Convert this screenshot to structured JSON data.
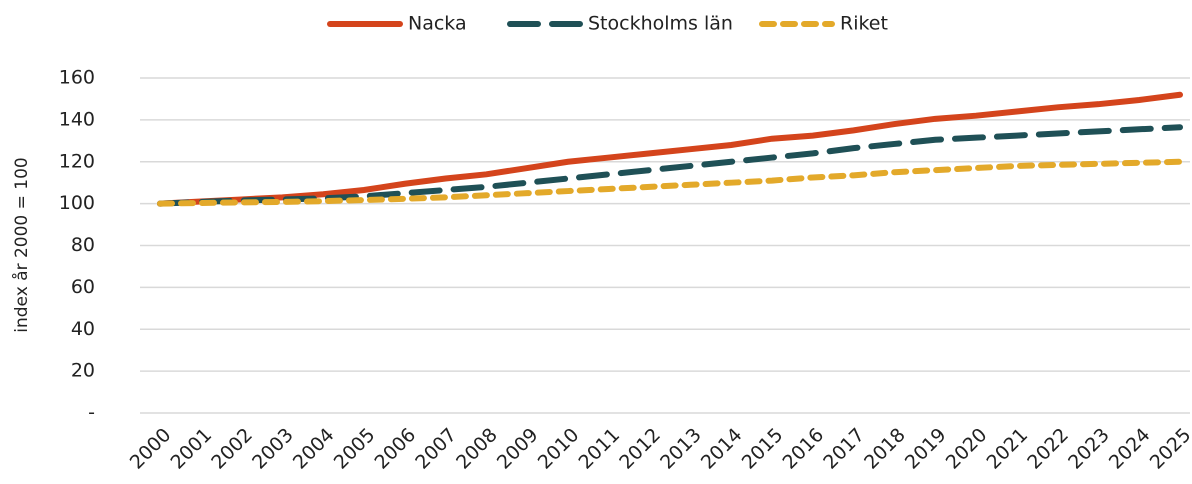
{
  "chart_data": {
    "type": "line",
    "y_label": "index år 2000 = 100",
    "categories": [
      "2000",
      "2001",
      "2002",
      "2003",
      "2004",
      "2005",
      "2006",
      "2007",
      "2008",
      "2009",
      "2010",
      "2011",
      "2012",
      "2013",
      "2014",
      "2015",
      "2016",
      "2017",
      "2018",
      "2019",
      "2020",
      "2021",
      "2022",
      "2023",
      "2024",
      "2025"
    ],
    "series": [
      {
        "name": "Nacka",
        "color": "#d4441c",
        "linestyle": "solid",
        "values": [
          100,
          101,
          102,
          103,
          104.5,
          106.5,
          109.5,
          112,
          114,
          117,
          120,
          122,
          124,
          126,
          128,
          131,
          132.5,
          135,
          138,
          140.5,
          142,
          144,
          146,
          147.5,
          149.5,
          152
        ]
      },
      {
        "name": "Stockholms län",
        "color": "#1f5056",
        "linestyle": "long-dash",
        "values": [
          100,
          100.8,
          101.5,
          102,
          102.5,
          103.5,
          105,
          106.5,
          108,
          110,
          112,
          114,
          116,
          118,
          120,
          122,
          124,
          126.5,
          128.5,
          130.5,
          131.5,
          132.5,
          133.5,
          134.5,
          135.5,
          136.5
        ]
      },
      {
        "name": "Riket",
        "color": "#e3a92a",
        "linestyle": "short-dash",
        "values": [
          100,
          100.3,
          100.6,
          100.8,
          101.2,
          101.7,
          102.3,
          103,
          104,
          105,
          106,
          107,
          108,
          109,
          110,
          111,
          112.5,
          113.5,
          115,
          116,
          117,
          118,
          118.5,
          119,
          119.5,
          120
        ]
      }
    ],
    "ylim": [
      0,
      160
    ],
    "yticks": [
      {
        "value": 0,
        "label": "-"
      },
      20,
      40,
      60,
      80,
      100,
      120,
      140,
      160
    ],
    "grid": true,
    "legend": "top"
  }
}
